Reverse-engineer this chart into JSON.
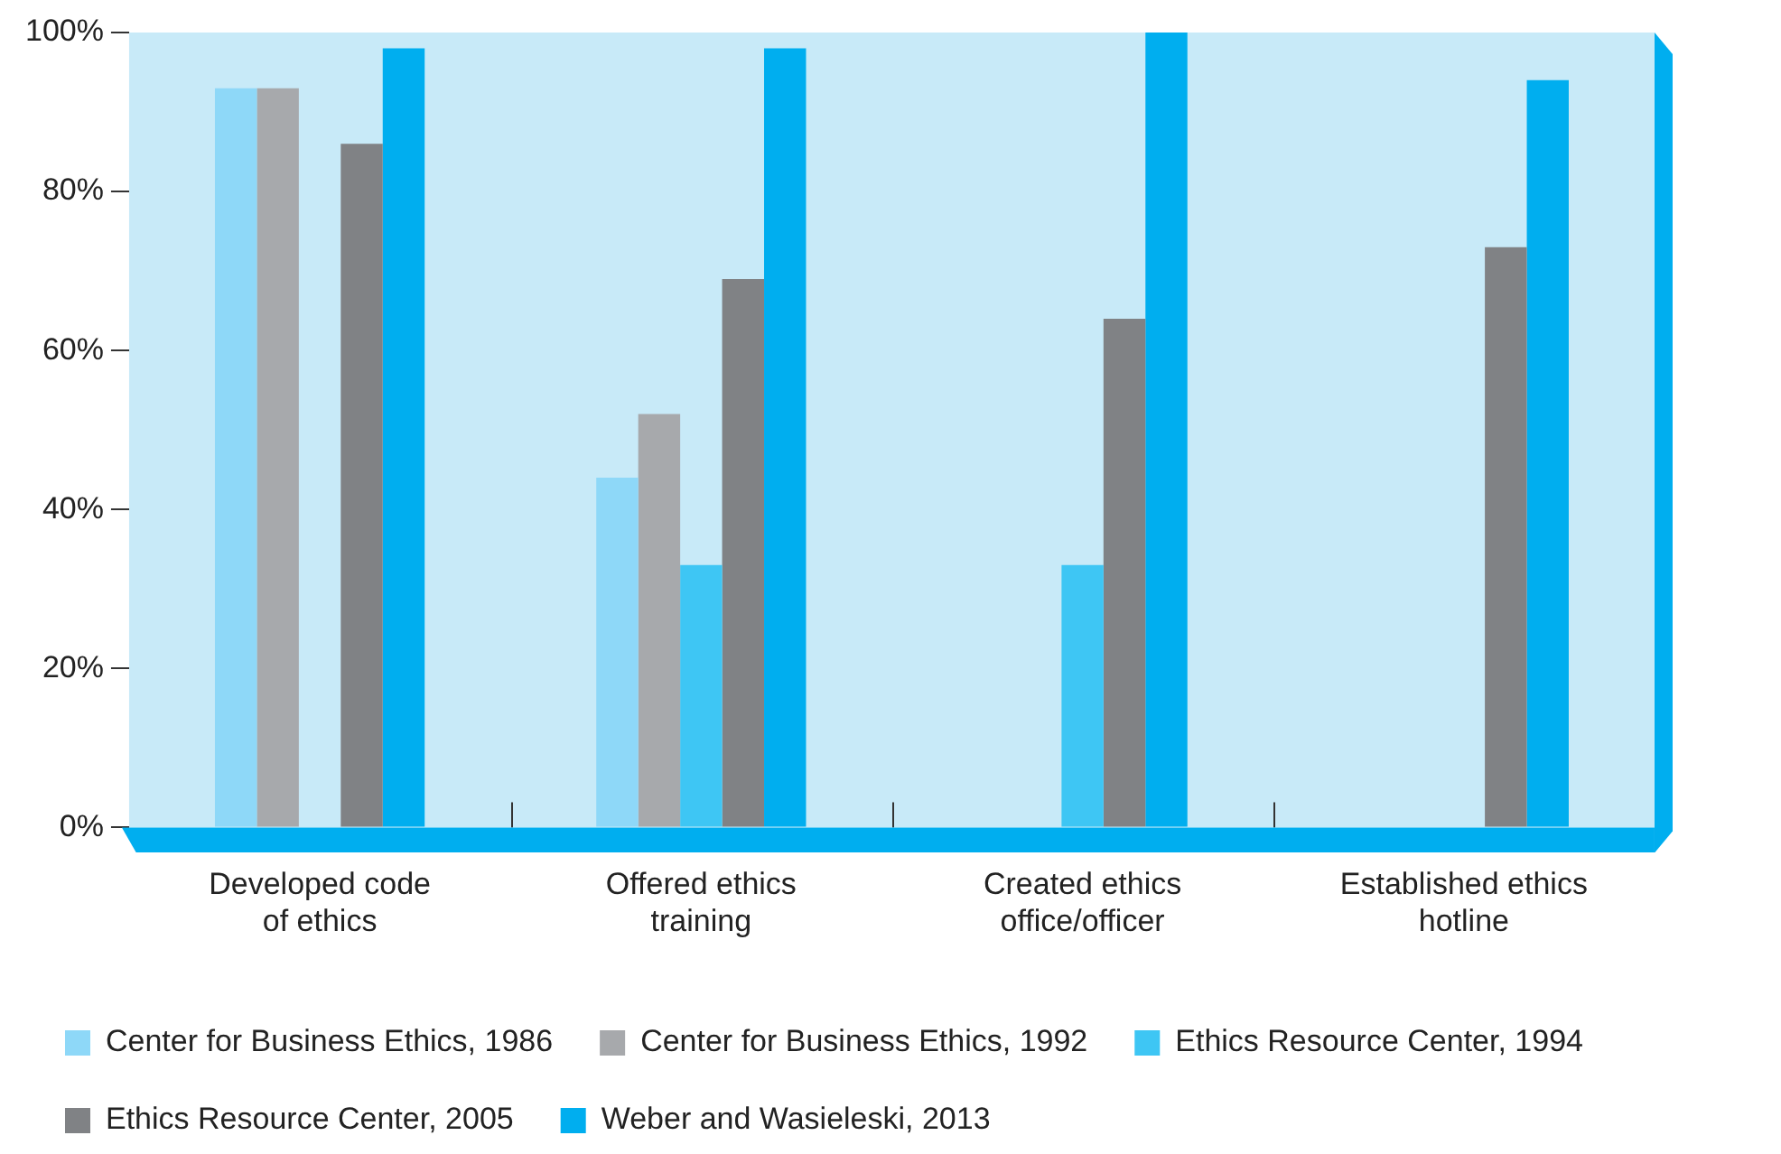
{
  "chart_data": {
    "type": "bar",
    "categories": [
      "Developed code of ethics",
      "Offered ethics training",
      "Created ethics office/officer",
      "Established ethics hotline"
    ],
    "series": [
      {
        "name": "Center for Business Ethics, 1986",
        "color": "#8ed8f8",
        "values": [
          93,
          44,
          null,
          null
        ]
      },
      {
        "name": "Center for Business Ethics, 1992",
        "color": "#a7a9ac",
        "values": [
          93,
          52,
          null,
          null
        ]
      },
      {
        "name": "Ethics Resource Center, 1994",
        "color": "#3ec6f4",
        "values": [
          null,
          33,
          33,
          null
        ]
      },
      {
        "name": "Ethics Resource Center, 2005",
        "color": "#808285",
        "values": [
          86,
          69,
          64,
          73
        ]
      },
      {
        "name": "Weber and Wasieleski, 2013",
        "color": "#00aeef",
        "values": [
          98,
          98,
          100,
          94
        ]
      }
    ],
    "ylim": [
      0,
      100
    ],
    "yticks": [
      {
        "value": 0,
        "label": "0%"
      },
      {
        "value": 20,
        "label": "20%"
      },
      {
        "value": 40,
        "label": "40%"
      },
      {
        "value": 60,
        "label": "60%"
      },
      {
        "value": 80,
        "label": "80%"
      },
      {
        "value": 100,
        "label": "100%"
      }
    ],
    "grid": false,
    "legend": "bottom"
  }
}
